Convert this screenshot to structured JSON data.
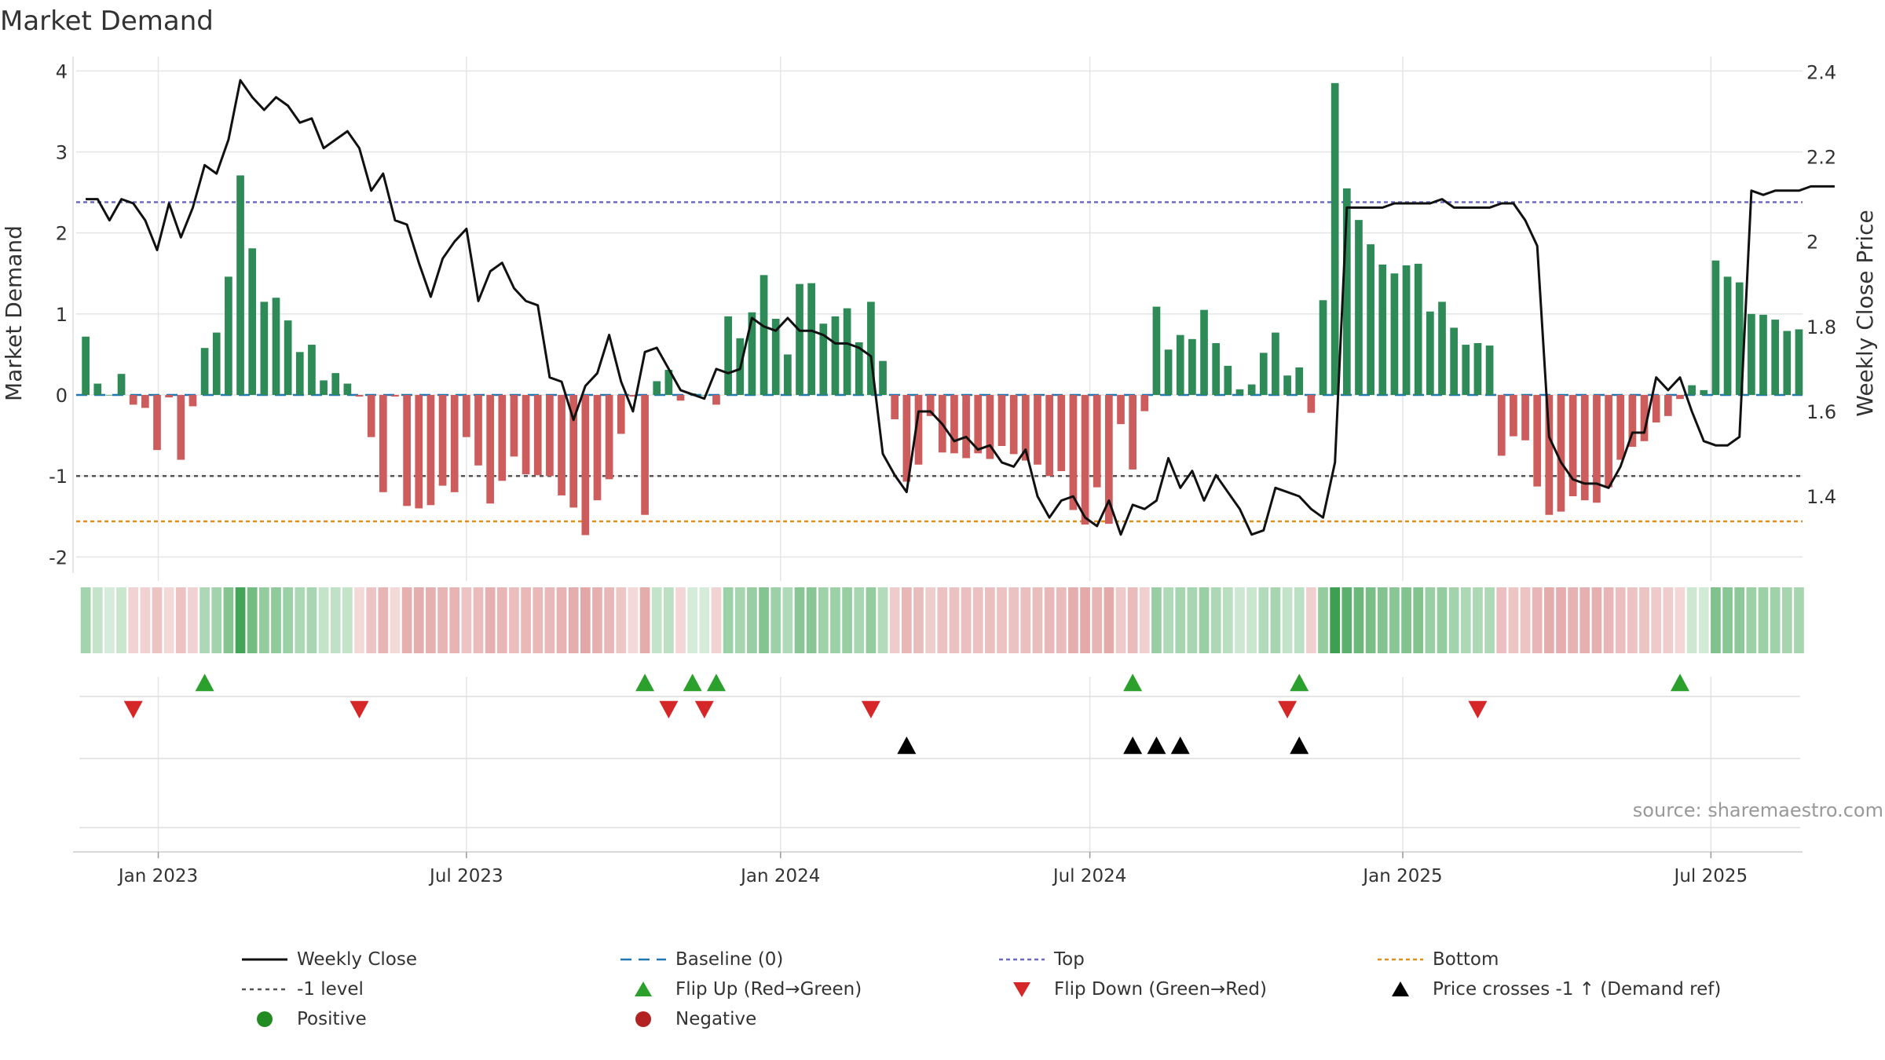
{
  "chart_data": {
    "type": "bar",
    "title": "Market Demand",
    "ylabel": "Market Demand",
    "y2label": "Weekly Close Price",
    "ylim": [
      -2.2,
      4.1
    ],
    "y_ticks": [
      -2,
      -1,
      0,
      1,
      2,
      3,
      4
    ],
    "y2lim": [
      1.219,
      2.421
    ],
    "y2_ticks": [
      1.4,
      1.6,
      1.8,
      2,
      2.2,
      2.4
    ],
    "y2_tick_labels": [
      "1.4",
      "1.6",
      "1.8",
      "2",
      "2.2",
      "2.4"
    ],
    "x_start": "2022-11-25",
    "x_step_days": 7,
    "x_min_index": -0.8,
    "x_max_index": 144.3,
    "x_ticks": [
      {
        "label": "Jan 2023",
        "index": 6.1
      },
      {
        "label": "Jul 2023",
        "index": 32.0
      },
      {
        "label": "Jan 2024",
        "index": 58.4
      },
      {
        "label": "Jul 2024",
        "index": 84.4
      },
      {
        "label": "Jan 2025",
        "index": 110.7
      },
      {
        "label": "Jul 2025",
        "index": 136.6
      }
    ],
    "levels": {
      "baseline": 0,
      "minus_one": -1,
      "top": 2.38,
      "bottom": -1.56
    },
    "colors": {
      "positive": "#2e8b57",
      "negative": "#cd5c5c",
      "close": "#111111",
      "baseline": "#1f77b4",
      "top": "#6b6bc4",
      "bottom": "#e0901a",
      "minus_one": "#555555",
      "flip_up": "#2ca02c",
      "flip_down": "#d62728",
      "cross": "#000000",
      "positive_dot": "#228b22",
      "negative_dot": "#b22222",
      "grid": "#e5e5e5",
      "source": "#999999"
    },
    "series": [
      {
        "name": "Market Demand",
        "values": [
          0.72,
          0.14,
          0.0,
          0.26,
          -0.12,
          -0.16,
          -0.68,
          -0.03,
          -0.8,
          -0.14,
          0.58,
          0.77,
          1.46,
          2.71,
          1.81,
          1.15,
          1.2,
          0.92,
          0.53,
          0.62,
          0.18,
          0.27,
          0.14,
          -0.02,
          -0.52,
          -1.2,
          -0.02,
          -1.37,
          -1.4,
          -1.36,
          -1.12,
          -1.2,
          -0.52,
          -0.87,
          -1.34,
          -1.06,
          -0.76,
          -0.98,
          -0.99,
          -1.0,
          -1.24,
          -1.39,
          -1.73,
          -1.3,
          -1.04,
          -0.48,
          -0.02,
          -1.48,
          0.17,
          0.31,
          -0.07,
          0.02,
          0.0,
          -0.12,
          0.97,
          0.7,
          1.02,
          1.48,
          0.94,
          0.5,
          1.37,
          1.38,
          0.88,
          0.97,
          1.07,
          0.65,
          1.15,
          0.42,
          -0.3,
          -1.07,
          -0.86,
          -0.26,
          -0.71,
          -0.72,
          -0.78,
          -0.72,
          -0.79,
          -0.63,
          -0.73,
          -0.81,
          -0.86,
          -1.0,
          -0.94,
          -1.42,
          -1.6,
          -1.14,
          -1.59,
          -0.36,
          -0.92,
          -0.2,
          1.09,
          0.56,
          0.74,
          0.69,
          1.05,
          0.64,
          0.36,
          0.07,
          0.13,
          0.52,
          0.77,
          0.24,
          0.34,
          -0.22,
          1.17,
          3.85,
          2.55,
          2.16,
          1.86,
          1.61,
          1.5,
          1.6,
          1.62,
          1.03,
          1.15,
          0.83,
          0.62,
          0.64,
          0.61,
          -0.75,
          -0.51,
          -0.56,
          -1.13,
          -1.48,
          -1.44,
          -1.25,
          -1.3,
          -1.33,
          -1.14,
          -0.8,
          -0.64,
          -0.57,
          -0.34,
          -0.26,
          -0.05,
          0.12,
          0.06,
          1.66,
          1.46,
          1.39,
          1.0,
          0.99,
          0.93,
          0.79,
          0.81
        ]
      },
      {
        "name": "Weekly Close",
        "axis": "right",
        "values": [
          2.1,
          2.1,
          2.05,
          2.1,
          2.09,
          2.05,
          1.98,
          2.09,
          2.01,
          2.08,
          2.18,
          2.16,
          2.24,
          2.38,
          2.34,
          2.31,
          2.34,
          2.32,
          2.28,
          2.29,
          2.22,
          2.24,
          2.26,
          2.22,
          2.12,
          2.16,
          2.05,
          2.04,
          1.95,
          1.87,
          1.96,
          2.0,
          2.03,
          1.86,
          1.93,
          1.95,
          1.89,
          1.86,
          1.85,
          1.68,
          1.67,
          1.58,
          1.66,
          1.69,
          1.78,
          1.67,
          1.6,
          1.74,
          1.75,
          1.7,
          1.65,
          1.64,
          1.63,
          1.7,
          1.69,
          1.7,
          1.82,
          1.8,
          1.79,
          1.82,
          1.79,
          1.79,
          1.78,
          1.76,
          1.76,
          1.75,
          1.73,
          1.5,
          1.45,
          1.41,
          1.6,
          1.6,
          1.57,
          1.53,
          1.54,
          1.51,
          1.52,
          1.48,
          1.47,
          1.51,
          1.4,
          1.35,
          1.39,
          1.4,
          1.35,
          1.33,
          1.39,
          1.31,
          1.38,
          1.37,
          1.39,
          1.49,
          1.42,
          1.46,
          1.39,
          1.45,
          1.41,
          1.37,
          1.31,
          1.32,
          1.42,
          1.41,
          1.4,
          1.37,
          1.35,
          1.48,
          2.08,
          2.08,
          2.08,
          2.08,
          2.09,
          2.09,
          2.09,
          2.09,
          2.1,
          2.08,
          2.08,
          2.08,
          2.08,
          2.09,
          2.09,
          2.05,
          1.99,
          1.54,
          1.48,
          1.44,
          1.43,
          1.43,
          1.42,
          1.47,
          1.55,
          1.55,
          1.68,
          1.65,
          1.68,
          1.6,
          1.53,
          1.52,
          1.52,
          1.54,
          2.12,
          2.11,
          2.12,
          2.12,
          2.12,
          2.13,
          2.13,
          2.13
        ]
      }
    ],
    "strip": {
      "intensity": [
        0.35,
        0.15,
        0.05,
        0.12,
        0.12,
        0.14,
        0.28,
        0.05,
        0.3,
        0.13,
        0.3,
        0.36,
        0.55,
        0.95,
        0.65,
        0.45,
        0.48,
        0.4,
        0.3,
        0.32,
        0.15,
        0.18,
        0.15,
        0.05,
        0.28,
        0.45,
        0.05,
        0.5,
        0.52,
        0.5,
        0.45,
        0.47,
        0.28,
        0.37,
        0.5,
        0.43,
        0.35,
        0.4,
        0.4,
        0.4,
        0.47,
        0.52,
        0.6,
        0.5,
        0.42,
        0.26,
        0.05,
        0.54,
        0.15,
        0.2,
        0.08,
        0.05,
        0.05,
        0.12,
        0.4,
        0.34,
        0.42,
        0.55,
        0.4,
        0.28,
        0.52,
        0.52,
        0.38,
        0.4,
        0.43,
        0.32,
        0.45,
        0.25,
        0.2,
        0.42,
        0.36,
        0.18,
        0.32,
        0.32,
        0.34,
        0.32,
        0.34,
        0.3,
        0.32,
        0.34,
        0.36,
        0.4,
        0.38,
        0.52,
        0.58,
        0.45,
        0.58,
        0.22,
        0.38,
        0.16,
        0.42,
        0.28,
        0.34,
        0.32,
        0.41,
        0.3,
        0.22,
        0.1,
        0.12,
        0.26,
        0.34,
        0.16,
        0.2,
        0.16,
        0.45,
        1.0,
        0.8,
        0.7,
        0.62,
        0.56,
        0.52,
        0.56,
        0.56,
        0.41,
        0.45,
        0.36,
        0.3,
        0.3,
        0.29,
        0.34,
        0.27,
        0.28,
        0.44,
        0.54,
        0.53,
        0.48,
        0.5,
        0.5,
        0.44,
        0.34,
        0.3,
        0.28,
        0.22,
        0.18,
        0.08,
        0.1,
        0.06,
        0.58,
        0.52,
        0.5,
        0.4,
        0.4,
        0.38,
        0.34,
        0.34
      ]
    },
    "events": {
      "flip_up": [
        10,
        47,
        51,
        53,
        88,
        102,
        134
      ],
      "flip_down": [
        4,
        23,
        49,
        52,
        66,
        101,
        117
      ],
      "price_cross": [
        69,
        88,
        90,
        92,
        102
      ]
    },
    "legend": [
      {
        "label": "Weekly Close",
        "key": "close"
      },
      {
        "label": "Baseline (0)",
        "key": "baseline"
      },
      {
        "label": "Top",
        "key": "top"
      },
      {
        "label": "Bottom",
        "key": "bottom"
      },
      {
        "label": "-1 level",
        "key": "minus_one"
      },
      {
        "label": "Flip Up (Red→Green)",
        "key": "flip_up"
      },
      {
        "label": "Flip Down (Green→Red)",
        "key": "flip_down"
      },
      {
        "label": "Price crosses -1 ↑ (Demand ref)",
        "key": "cross"
      },
      {
        "label": "Positive",
        "key": "positive_dot"
      },
      {
        "label": "Negative",
        "key": "negative_dot"
      }
    ],
    "source": "source: sharemaestro.com"
  }
}
